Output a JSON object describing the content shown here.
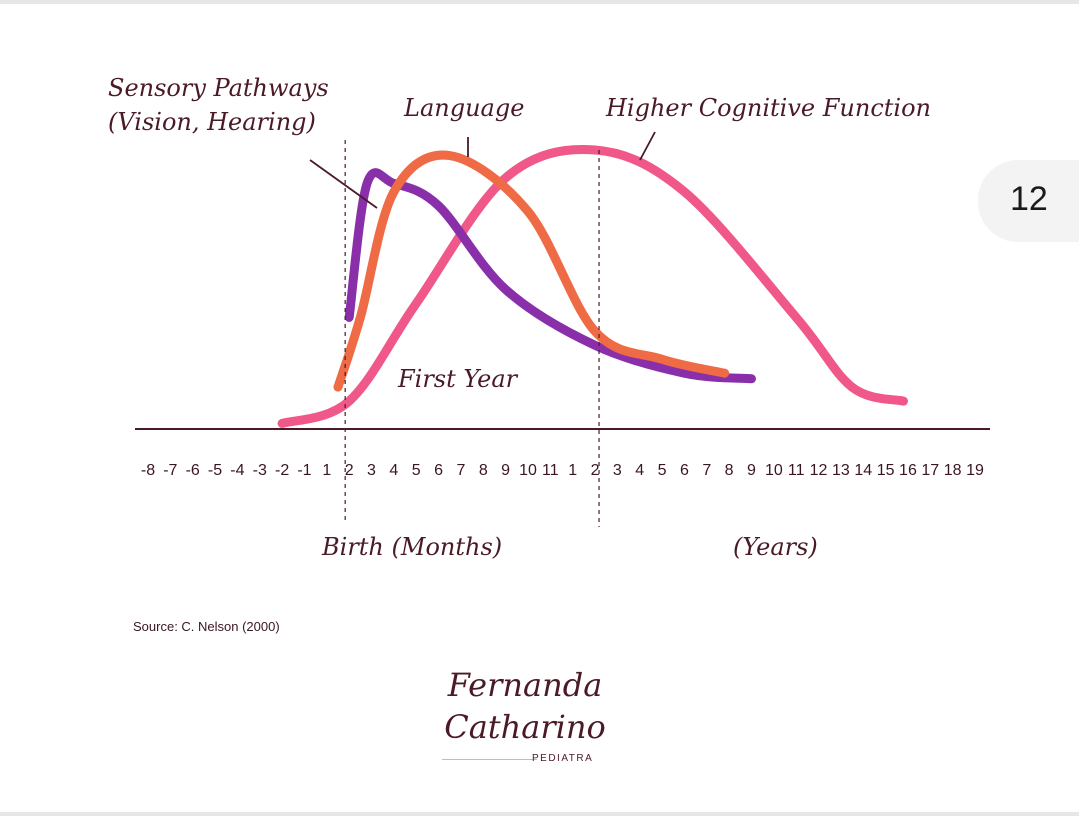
{
  "page": {
    "number": "12"
  },
  "source": "Source: C. Nelson (2000)",
  "logo": {
    "line1": "Fernanda",
    "line2": "Catharino",
    "subtitle": "PEDIATRA"
  },
  "chart_data": {
    "type": "line",
    "title": "",
    "annotations": {
      "first_year": "First Year",
      "birth_months": "Birth (Months)",
      "years": "(Years)"
    },
    "x_ticks": [
      "-8",
      "-7",
      "-6",
      "-5",
      "-4",
      "-3",
      "-2",
      "-1",
      "1",
      "2",
      "3",
      "4",
      "5",
      "6",
      "7",
      "8",
      "9",
      "10",
      "11",
      "1",
      "2",
      "3",
      "4",
      "5",
      "6",
      "7",
      "8",
      "9",
      "10",
      "11",
      "12",
      "13",
      "14",
      "15",
      "16",
      "17",
      "18",
      "19"
    ],
    "birth_tick_index": 9,
    "first_year_tick_index": 20,
    "y_range": [
      0,
      1
    ],
    "grid": false,
    "series": [
      {
        "name": "Sensory Pathways (Vision, Hearing)",
        "label_lines": [
          "Sensory Pathways",
          "(Vision, Hearing)"
        ],
        "color": "#8a2faa",
        "points": [
          [
            9,
            0.4
          ],
          [
            9.8,
            0.88
          ],
          [
            11,
            0.88
          ],
          [
            13,
            0.8
          ],
          [
            16,
            0.5
          ],
          [
            20,
            0.3
          ],
          [
            24,
            0.2
          ],
          [
            27,
            0.18
          ]
        ]
      },
      {
        "name": "Language",
        "label_lines": [
          "Language"
        ],
        "color": "#ef6b45",
        "points": [
          [
            8.5,
            0.15
          ],
          [
            9.5,
            0.4
          ],
          [
            11,
            0.85
          ],
          [
            13.5,
            0.98
          ],
          [
            17,
            0.78
          ],
          [
            20,
            0.35
          ],
          [
            23,
            0.25
          ],
          [
            25.8,
            0.2
          ]
        ]
      },
      {
        "name": "Higher Cognitive Function",
        "label_lines": [
          "Higher Cognitive Function"
        ],
        "color": "#f0588a",
        "points": [
          [
            6,
            0.02
          ],
          [
            9,
            0.1
          ],
          [
            12,
            0.45
          ],
          [
            16,
            0.9
          ],
          [
            20,
            1.0
          ],
          [
            24,
            0.85
          ],
          [
            29,
            0.4
          ],
          [
            31.5,
            0.15
          ],
          [
            33.8,
            0.1
          ]
        ]
      }
    ]
  }
}
